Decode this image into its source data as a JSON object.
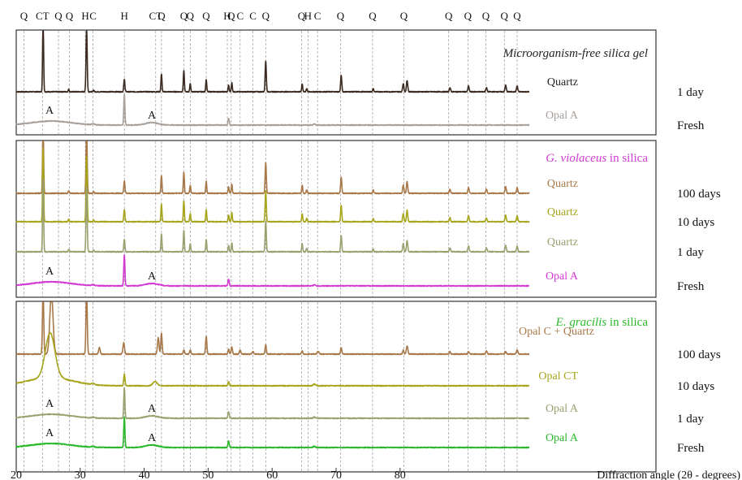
{
  "chart_data": {
    "type": "line",
    "xlabel": "Diffraction angle (2θ - degrees)",
    "x_axis": {
      "min": 20,
      "max": 90,
      "ticks": [
        20,
        30,
        40,
        50,
        60,
        70,
        80
      ]
    },
    "phase_markers": [
      {
        "label": "Q",
        "x": 21.2
      },
      {
        "label": "CT",
        "x": 24.1
      },
      {
        "label": "Q",
        "x": 26.6
      },
      {
        "label": "Q",
        "x": 28.3
      },
      {
        "label": "H",
        "x": 30.8
      },
      {
        "label": "C",
        "x": 32.0
      },
      {
        "label": "H",
        "x": 36.9
      },
      {
        "label": "CT",
        "x": 41.8
      },
      {
        "label": "Q",
        "x": 42.7
      },
      {
        "label": "Q",
        "x": 46.2
      },
      {
        "label": "Q",
        "x": 47.2
      },
      {
        "label": "Q",
        "x": 49.7
      },
      {
        "label": "H",
        "x": 53.0
      },
      {
        "label": "Q",
        "x": 53.6
      },
      {
        "label": "C",
        "x": 55.0
      },
      {
        "label": "C",
        "x": 57.0
      },
      {
        "label": "Q",
        "x": 59.0
      },
      {
        "label": "Q",
        "x": 64.6
      },
      {
        "label": "H",
        "x": 65.6
      },
      {
        "label": "C",
        "x": 67.1
      },
      {
        "label": "Q",
        "x": 70.7
      },
      {
        "label": "Q",
        "x": 75.7
      },
      {
        "label": "Q",
        "x": 80.6
      },
      {
        "label": "Q",
        "x": 87.6
      },
      {
        "label": "Q",
        "x": 90.6
      },
      {
        "label": "Q",
        "x": 93.4
      },
      {
        "label": "Q",
        "x": 96.3
      },
      {
        "label": "Q",
        "x": 98.3
      }
    ],
    "panels": [
      {
        "title": "Microorganism-free silica gel",
        "title_color": "#222222",
        "series": [
          {
            "name": "1 day",
            "phase": "Quartz",
            "color": "#3a2a1f",
            "profile": "quartz",
            "baseline": 0.0
          },
          {
            "name": "Fresh",
            "phase": "Opal A",
            "color": "#a89f9a",
            "profile": "opal_a",
            "baseline": 0.0
          }
        ],
        "annotations": [
          {
            "text": "A",
            "x": 25.2
          },
          {
            "text": "A",
            "x": 41.2
          }
        ]
      },
      {
        "title_italic": "G. violaceus",
        "title_rest": " in silica",
        "title_color": "#d23ad1",
        "series": [
          {
            "name": "100 days",
            "phase": "Quartz",
            "color": "#a87849",
            "profile": "quartz",
            "baseline": 0.0
          },
          {
            "name": "10 days",
            "phase": "Quartz",
            "color": "#a6a51b",
            "profile": "quartz",
            "baseline": 0.0
          },
          {
            "name": "1 day",
            "phase": "Quartz",
            "color": "#9aa06e",
            "profile": "quartz",
            "baseline": 0.0
          },
          {
            "name": "Fresh",
            "phase": "Opal A",
            "color": "#d23ad1",
            "profile": "opal_a",
            "baseline": 0.0
          }
        ],
        "annotations": [
          {
            "text": "A",
            "x": 25.2
          },
          {
            "text": "A",
            "x": 41.2
          }
        ]
      },
      {
        "title_italic": "E. gracilis",
        "title_rest": " in silica",
        "title_color": "#29b82a",
        "series": [
          {
            "name": "100 days",
            "phase": "Opal C + Quartz",
            "color": "#a87849",
            "profile": "opal_c",
            "baseline": 0.0
          },
          {
            "name": "10 days",
            "phase": "Opal CT",
            "color": "#a6a51b",
            "profile": "opal_ct",
            "baseline": 0.0
          },
          {
            "name": "1 day",
            "phase": "Opal A",
            "color": "#9aa06e",
            "profile": "opal_a",
            "baseline": 0.0
          },
          {
            "name": "Fresh",
            "phase": "Opal A",
            "color": "#29b82a",
            "profile": "opal_a",
            "baseline": 0.0
          }
        ],
        "annotations": [
          {
            "text": "A",
            "x": 25.2
          },
          {
            "text": "A",
            "x": 41.2
          },
          {
            "text": "A",
            "x": 25.2
          },
          {
            "text": "A",
            "x": 41.2
          }
        ]
      }
    ]
  }
}
